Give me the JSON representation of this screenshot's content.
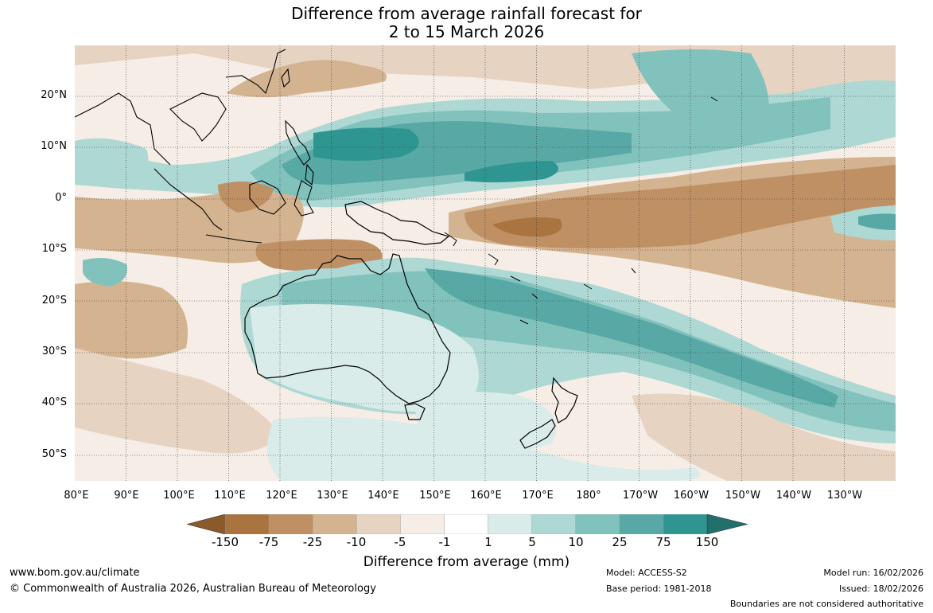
{
  "title": {
    "line1": "Difference from average rainfall forecast for",
    "line2": "2 to 15 March 2026"
  },
  "map": {
    "lat_labels": [
      "20°N",
      "10°N",
      "0°",
      "10°S",
      "20°S",
      "30°S",
      "40°S",
      "50°S"
    ],
    "lon_labels": [
      "80°E",
      "90°E",
      "100°E",
      "110°E",
      "120°E",
      "130°E",
      "140°E",
      "150°E",
      "160°E",
      "170°E",
      "180°",
      "170°W",
      "160°W",
      "150°W",
      "140°W",
      "130°W"
    ]
  },
  "colorbar": {
    "labels": [
      "-150",
      "-75",
      "-25",
      "-10",
      "-5",
      "-1",
      "1",
      "5",
      "10",
      "25",
      "75",
      "150"
    ],
    "colors": [
      "#8a5a2b",
      "#a97440",
      "#bf9064",
      "#d4b391",
      "#e6d3c1",
      "#f5ede6",
      "#ffffff",
      "#d9ecea",
      "#add8d4",
      "#82c2bd",
      "#58a9a5",
      "#2f9590",
      "#226f6c"
    ],
    "title": "Difference from average (mm)"
  },
  "footer": {
    "website": "www.bom.gov.au/climate",
    "copyright": "© Commonwealth of Australia 2026, Australian Bureau of Meteorology",
    "model": "Model: ACCESS-S2",
    "base_period": "Base period: 1981-2018",
    "model_run": "Model run: 16/02/2026",
    "issued": "Issued: 18/02/2026",
    "disclaimer": "Boundaries are not considered authoritative"
  }
}
